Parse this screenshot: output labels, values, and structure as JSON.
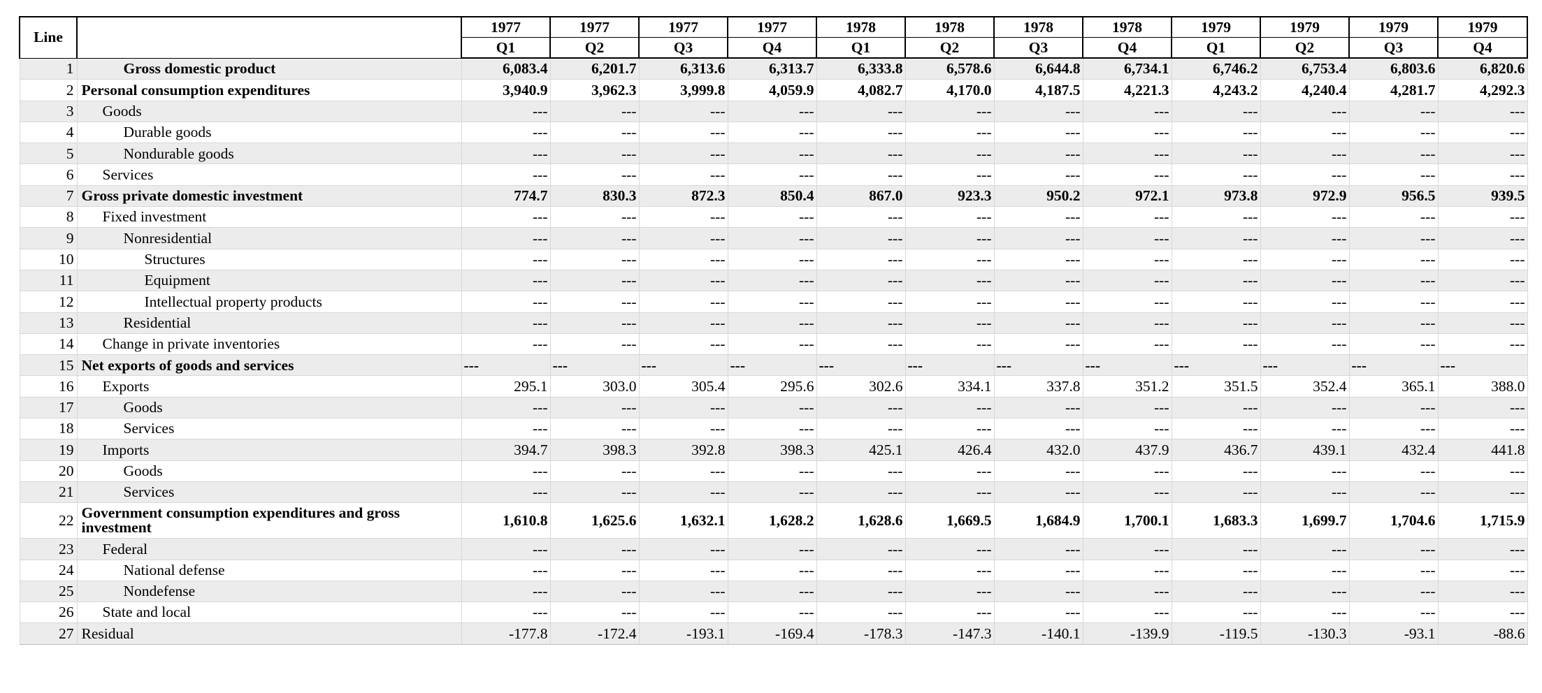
{
  "header": {
    "line_label": "Line",
    "periods": [
      {
        "year": "1977",
        "quarter": "Q1"
      },
      {
        "year": "1977",
        "quarter": "Q2"
      },
      {
        "year": "1977",
        "quarter": "Q3"
      },
      {
        "year": "1977",
        "quarter": "Q4"
      },
      {
        "year": "1978",
        "quarter": "Q1"
      },
      {
        "year": "1978",
        "quarter": "Q2"
      },
      {
        "year": "1978",
        "quarter": "Q3"
      },
      {
        "year": "1978",
        "quarter": "Q4"
      },
      {
        "year": "1979",
        "quarter": "Q1"
      },
      {
        "year": "1979",
        "quarter": "Q2"
      },
      {
        "year": "1979",
        "quarter": "Q3"
      },
      {
        "year": "1979",
        "quarter": "Q4"
      }
    ]
  },
  "rows": [
    {
      "line": "1",
      "label": "Gross domestic product",
      "indent": 2,
      "bold": true,
      "values": [
        "6,083.4",
        "6,201.7",
        "6,313.6",
        "6,313.7",
        "6,333.8",
        "6,578.6",
        "6,644.8",
        "6,734.1",
        "6,746.2",
        "6,753.4",
        "6,803.6",
        "6,820.6"
      ]
    },
    {
      "line": "2",
      "label": "Personal consumption expenditures",
      "indent": 0,
      "bold": true,
      "values": [
        "3,940.9",
        "3,962.3",
        "3,999.8",
        "4,059.9",
        "4,082.7",
        "4,170.0",
        "4,187.5",
        "4,221.3",
        "4,243.2",
        "4,240.4",
        "4,281.7",
        "4,292.3"
      ]
    },
    {
      "line": "3",
      "label": "Goods",
      "indent": 1,
      "bold": false,
      "values": [
        "---",
        "---",
        "---",
        "---",
        "---",
        "---",
        "---",
        "---",
        "---",
        "---",
        "---",
        "---"
      ]
    },
    {
      "line": "4",
      "label": "Durable goods",
      "indent": 2,
      "bold": false,
      "values": [
        "---",
        "---",
        "---",
        "---",
        "---",
        "---",
        "---",
        "---",
        "---",
        "---",
        "---",
        "---"
      ]
    },
    {
      "line": "5",
      "label": "Nondurable goods",
      "indent": 2,
      "bold": false,
      "values": [
        "---",
        "---",
        "---",
        "---",
        "---",
        "---",
        "---",
        "---",
        "---",
        "---",
        "---",
        "---"
      ]
    },
    {
      "line": "6",
      "label": "Services",
      "indent": 1,
      "bold": false,
      "values": [
        "---",
        "---",
        "---",
        "---",
        "---",
        "---",
        "---",
        "---",
        "---",
        "---",
        "---",
        "---"
      ]
    },
    {
      "line": "7",
      "label": "Gross private domestic investment",
      "indent": 0,
      "bold": true,
      "values": [
        "774.7",
        "830.3",
        "872.3",
        "850.4",
        "867.0",
        "923.3",
        "950.2",
        "972.1",
        "973.8",
        "972.9",
        "956.5",
        "939.5"
      ]
    },
    {
      "line": "8",
      "label": "Fixed investment",
      "indent": 1,
      "bold": false,
      "values": [
        "---",
        "---",
        "---",
        "---",
        "---",
        "---",
        "---",
        "---",
        "---",
        "---",
        "---",
        "---"
      ]
    },
    {
      "line": "9",
      "label": "Nonresidential",
      "indent": 2,
      "bold": false,
      "values": [
        "---",
        "---",
        "---",
        "---",
        "---",
        "---",
        "---",
        "---",
        "---",
        "---",
        "---",
        "---"
      ]
    },
    {
      "line": "10",
      "label": "Structures",
      "indent": 3,
      "bold": false,
      "values": [
        "---",
        "---",
        "---",
        "---",
        "---",
        "---",
        "---",
        "---",
        "---",
        "---",
        "---",
        "---"
      ]
    },
    {
      "line": "11",
      "label": "Equipment",
      "indent": 3,
      "bold": false,
      "values": [
        "---",
        "---",
        "---",
        "---",
        "---",
        "---",
        "---",
        "---",
        "---",
        "---",
        "---",
        "---"
      ]
    },
    {
      "line": "12",
      "label": "Intellectual property products",
      "indent": 3,
      "bold": false,
      "values": [
        "---",
        "---",
        "---",
        "---",
        "---",
        "---",
        "---",
        "---",
        "---",
        "---",
        "---",
        "---"
      ]
    },
    {
      "line": "13",
      "label": "Residential",
      "indent": 2,
      "bold": false,
      "values": [
        "---",
        "---",
        "---",
        "---",
        "---",
        "---",
        "---",
        "---",
        "---",
        "---",
        "---",
        "---"
      ]
    },
    {
      "line": "14",
      "label": "Change in private inventories",
      "indent": 1,
      "bold": false,
      "values": [
        "---",
        "---",
        "---",
        "---",
        "---",
        "---",
        "---",
        "---",
        "---",
        "---",
        "---",
        "---"
      ]
    },
    {
      "line": "15",
      "label": "Net exports of goods and services",
      "indent": 0,
      "bold": true,
      "left_values": true,
      "values": [
        "---",
        "---",
        "---",
        "---",
        "---",
        "---",
        "---",
        "---",
        "---",
        "---",
        "---",
        "---"
      ]
    },
    {
      "line": "16",
      "label": "Exports",
      "indent": 1,
      "bold": false,
      "values": [
        "295.1",
        "303.0",
        "305.4",
        "295.6",
        "302.6",
        "334.1",
        "337.8",
        "351.2",
        "351.5",
        "352.4",
        "365.1",
        "388.0"
      ]
    },
    {
      "line": "17",
      "label": "Goods",
      "indent": 2,
      "bold": false,
      "values": [
        "---",
        "---",
        "---",
        "---",
        "---",
        "---",
        "---",
        "---",
        "---",
        "---",
        "---",
        "---"
      ]
    },
    {
      "line": "18",
      "label": "Services",
      "indent": 2,
      "bold": false,
      "values": [
        "---",
        "---",
        "---",
        "---",
        "---",
        "---",
        "---",
        "---",
        "---",
        "---",
        "---",
        "---"
      ]
    },
    {
      "line": "19",
      "label": "Imports",
      "indent": 1,
      "bold": false,
      "values": [
        "394.7",
        "398.3",
        "392.8",
        "398.3",
        "425.1",
        "426.4",
        "432.0",
        "437.9",
        "436.7",
        "439.1",
        "432.4",
        "441.8"
      ]
    },
    {
      "line": "20",
      "label": "Goods",
      "indent": 2,
      "bold": false,
      "values": [
        "---",
        "---",
        "---",
        "---",
        "---",
        "---",
        "---",
        "---",
        "---",
        "---",
        "---",
        "---"
      ]
    },
    {
      "line": "21",
      "label": "Services",
      "indent": 2,
      "bold": false,
      "values": [
        "---",
        "---",
        "---",
        "---",
        "---",
        "---",
        "---",
        "---",
        "---",
        "---",
        "---",
        "---"
      ]
    },
    {
      "line": "22",
      "label": "Government consumption expenditures and gross investment",
      "indent": 0,
      "bold": true,
      "tall": true,
      "values": [
        "1,610.8",
        "1,625.6",
        "1,632.1",
        "1,628.2",
        "1,628.6",
        "1,669.5",
        "1,684.9",
        "1,700.1",
        "1,683.3",
        "1,699.7",
        "1,704.6",
        "1,715.9"
      ]
    },
    {
      "line": "23",
      "label": "Federal",
      "indent": 1,
      "bold": false,
      "values": [
        "---",
        "---",
        "---",
        "---",
        "---",
        "---",
        "---",
        "---",
        "---",
        "---",
        "---",
        "---"
      ]
    },
    {
      "line": "24",
      "label": "National defense",
      "indent": 2,
      "bold": false,
      "values": [
        "---",
        "---",
        "---",
        "---",
        "---",
        "---",
        "---",
        "---",
        "---",
        "---",
        "---",
        "---"
      ]
    },
    {
      "line": "25",
      "label": "Nondefense",
      "indent": 2,
      "bold": false,
      "values": [
        "---",
        "---",
        "---",
        "---",
        "---",
        "---",
        "---",
        "---",
        "---",
        "---",
        "---",
        "---"
      ]
    },
    {
      "line": "26",
      "label": "State and local",
      "indent": 1,
      "bold": false,
      "values": [
        "---",
        "---",
        "---",
        "---",
        "---",
        "---",
        "---",
        "---",
        "---",
        "---",
        "---",
        "---"
      ]
    },
    {
      "line": "27",
      "label": "Residual",
      "indent": 0,
      "bold": false,
      "values": [
        "-177.8",
        "-172.4",
        "-193.1",
        "-169.4",
        "-178.3",
        "-147.3",
        "-140.1",
        "-139.9",
        "-119.5",
        "-130.3",
        "-93.1",
        "-88.6"
      ]
    }
  ]
}
